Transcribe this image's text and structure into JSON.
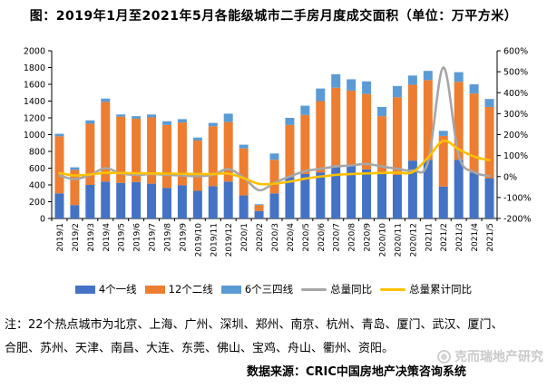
{
  "title": "图：2019年1月至2021年5月各能级城市二手房月度成交面积（单位：万平方米）",
  "note": "注：22个热点城市为北京、上海、广州、深圳、郑州、南京、杭州、青岛、厦门、武汉、厦门、合肥、苏州、天津、南昌、大连、东莞、佛山、宝鸡、舟山、衢州、资阳。",
  "source": "数据来源：CRIC中国房地产决策咨询系统",
  "watermark": "克而瑞地产研究",
  "colors": {
    "tier1_blue": "#4472C4",
    "tier2_orange": "#ED7D31",
    "tier34_lightblue": "#5B9BD5",
    "yoy_gray": "#A6A6A6",
    "cum_yoy_yellow": "#FFC000",
    "axis_black": "#000000",
    "watermark_gray": "#C9C9C9"
  },
  "chart_data": {
    "type": "bar",
    "subtype": "stacked-bars-with-lines",
    "title": "图：2019年1月至2021年5月各能级城市二手房月度成交面积（单位：万平方米）",
    "xlabel": "",
    "ylabel_left": "万平方米",
    "ylabel_right": "%",
    "grid": false,
    "legend_position": "bottom",
    "left_axis": {
      "min": 0,
      "max": 2000,
      "step": 200
    },
    "right_axis": {
      "min": -200,
      "max": 600,
      "step": 100,
      "suffix": "%"
    },
    "categories": [
      "2019/1",
      "2019/2",
      "2019/3",
      "2019/4",
      "2019/5",
      "2019/6",
      "2019/7",
      "2019/8",
      "2019/9",
      "2019/10",
      "2019/11",
      "2019/12",
      "2020/1",
      "2020/2",
      "2020/3",
      "2020/4",
      "2020/5",
      "2020/6",
      "2020/7",
      "2020/8",
      "2020/9",
      "2020/10",
      "2020/11",
      "2020/12",
      "2021/1",
      "2021/2",
      "2021/3",
      "2021/4",
      "2021/5"
    ],
    "series": [
      {
        "name": "4个一线",
        "type": "bar",
        "axis": "left",
        "color": "#4472C4",
        "values": [
          300,
          160,
          400,
          440,
          425,
          435,
          415,
          365,
          395,
          330,
          385,
          440,
          275,
          90,
          300,
          495,
          530,
          550,
          635,
          630,
          585,
          550,
          520,
          690,
          700,
          380,
          700,
          550,
          480
        ]
      },
      {
        "name": "12个二线",
        "type": "bar",
        "axis": "left",
        "color": "#ED7D31",
        "values": [
          680,
          420,
          730,
          950,
          790,
          755,
          790,
          750,
          750,
          600,
          715,
          710,
          560,
          70,
          400,
          620,
          705,
          850,
          925,
          895,
          900,
          670,
          925,
          905,
          950,
          605,
          930,
          940,
          850
        ]
      },
      {
        "name": "6个三四线",
        "type": "bar",
        "axis": "left",
        "color": "#5B9BD5",
        "values": [
          30,
          30,
          40,
          40,
          25,
          30,
          35,
          45,
          40,
          35,
          40,
          100,
          45,
          10,
          75,
          85,
          110,
          150,
          160,
          135,
          150,
          110,
          135,
          110,
          110,
          60,
          115,
          110,
          95
        ]
      },
      {
        "name": "总量同比",
        "type": "line",
        "axis": "right",
        "color": "#A6A6A6",
        "values": [
          5,
          -12,
          8,
          40,
          15,
          8,
          12,
          8,
          5,
          2,
          8,
          35,
          -5,
          -65,
          -30,
          0,
          26,
          37,
          48,
          53,
          60,
          48,
          37,
          29,
          68,
          520,
          100,
          21,
          3
        ]
      },
      {
        "name": "总量累计同比",
        "type": "line",
        "axis": "right",
        "color": "#FFC000",
        "values": [
          17,
          5,
          10,
          18,
          17,
          16,
          15,
          14,
          13,
          12,
          12,
          14,
          -8,
          -35,
          -34,
          -24,
          -10,
          0,
          8,
          12,
          15,
          17,
          19,
          21,
          90,
          170,
          130,
          95,
          78
        ]
      }
    ]
  }
}
